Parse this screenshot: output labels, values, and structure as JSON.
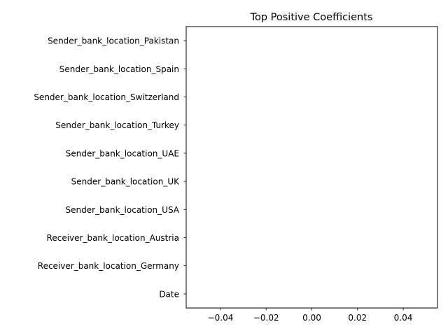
{
  "chart_data": {
    "type": "bar",
    "orientation": "horizontal",
    "title": "Top Positive Coefficients",
    "xlabel": "",
    "ylabel": "",
    "categories": [
      "Sender_bank_location_Pakistan",
      "Sender_bank_location_Spain",
      "Sender_bank_location_Switzerland",
      "Sender_bank_location_Turkey",
      "Sender_bank_location_UAE",
      "Sender_bank_location_UK",
      "Sender_bank_location_USA",
      "Receiver_bank_location_Austria",
      "Receiver_bank_location_Germany",
      "Date"
    ],
    "values": [
      0,
      0,
      0,
      0,
      0,
      0,
      0,
      0,
      0,
      0
    ],
    "xlim": [
      -0.055,
      0.055
    ],
    "xticks": [
      -0.04,
      -0.02,
      0.0,
      0.02,
      0.04
    ],
    "xtick_labels": [
      "−0.04",
      "−0.02",
      "0.00",
      "0.02",
      "0.04"
    ],
    "grid": false,
    "legend": "none",
    "bar_color": "#1f77b4"
  }
}
